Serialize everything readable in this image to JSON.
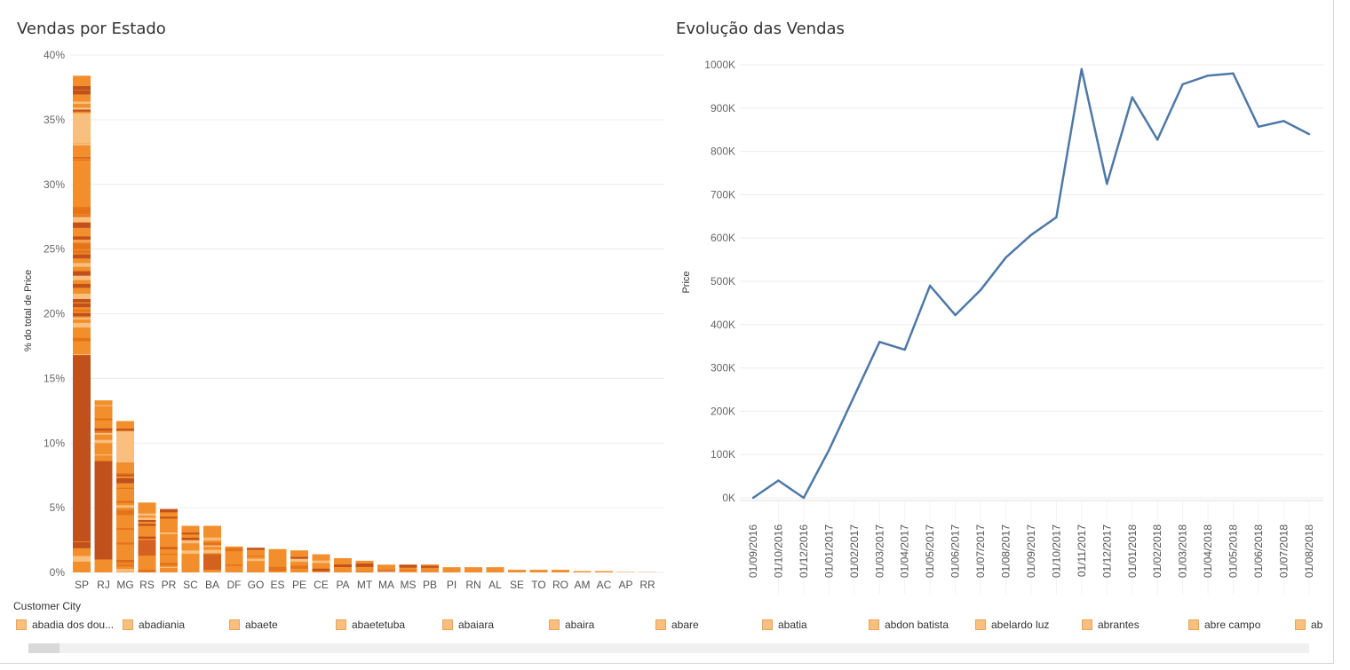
{
  "chart_data": [
    {
      "type": "bar",
      "title": "Vendas por Estado",
      "ylabel": "% do total de Price",
      "xlabel": "",
      "ylim": [
        0,
        40
      ],
      "yticks": [
        "0%",
        "5%",
        "10%",
        "15%",
        "20%",
        "25%",
        "30%",
        "35%",
        "40%"
      ],
      "ytick_values": [
        0,
        5,
        10,
        15,
        20,
        25,
        30,
        35,
        40
      ],
      "stacked_by": "Customer City",
      "grid": true,
      "categories": [
        "SP",
        "RJ",
        "MG",
        "RS",
        "PR",
        "SC",
        "BA",
        "DF",
        "GO",
        "ES",
        "PE",
        "CE",
        "PA",
        "MT",
        "MA",
        "MS",
        "PB",
        "PI",
        "RN",
        "AL",
        "SE",
        "TO",
        "RO",
        "AM",
        "AC",
        "AP",
        "RR"
      ],
      "values": [
        38.4,
        13.3,
        11.7,
        5.4,
        4.9,
        3.6,
        3.6,
        2.0,
        1.9,
        1.8,
        1.7,
        1.4,
        1.1,
        0.9,
        0.6,
        0.6,
        0.6,
        0.4,
        0.4,
        0.4,
        0.2,
        0.2,
        0.2,
        0.1,
        0.1,
        0.03,
        0.02
      ]
    },
    {
      "type": "line",
      "title": "Evolução das Vendas",
      "ylabel": "Price",
      "xlabel": "",
      "ylim": [
        0,
        1000000
      ],
      "yticks": [
        "0K",
        "100K",
        "200K",
        "300K",
        "400K",
        "500K",
        "600K",
        "700K",
        "800K",
        "900K",
        "1000K"
      ],
      "ytick_values": [
        0,
        100000,
        200000,
        300000,
        400000,
        500000,
        600000,
        700000,
        800000,
        900000,
        1000000
      ],
      "grid": true,
      "x": [
        "01/09/2016",
        "01/10/2016",
        "01/12/2016",
        "01/01/2017",
        "01/02/2017",
        "01/03/2017",
        "01/04/2017",
        "01/05/2017",
        "01/06/2017",
        "01/07/2017",
        "01/08/2017",
        "01/09/2017",
        "01/10/2017",
        "01/11/2017",
        "01/12/2017",
        "01/01/2018",
        "01/02/2018",
        "01/03/2018",
        "01/04/2018",
        "01/05/2018",
        "01/06/2018",
        "01/07/2018",
        "01/08/2018"
      ],
      "values": [
        0,
        40000,
        0,
        110000,
        235000,
        360000,
        342000,
        490000,
        422000,
        480000,
        555000,
        607000,
        648000,
        990000,
        725000,
        925000,
        827000,
        955000,
        975000,
        980000,
        857000,
        870000,
        840000
      ],
      "color": "#4e79a7"
    }
  ],
  "legend": {
    "title": "Customer City",
    "items": [
      "abadia dos dou...",
      "abadiania",
      "abaete",
      "abaetetuba",
      "abaiara",
      "abaira",
      "abare",
      "abatia",
      "abdon batista",
      "abelardo luz",
      "abrantes",
      "abre campo",
      "ab"
    ]
  },
  "colors": {
    "bar_base": "#f28e2b",
    "bar_light": "#f9bf7e",
    "bar_dark": "#c0501c",
    "line": "#4e79a7",
    "grid": "#ececec"
  }
}
